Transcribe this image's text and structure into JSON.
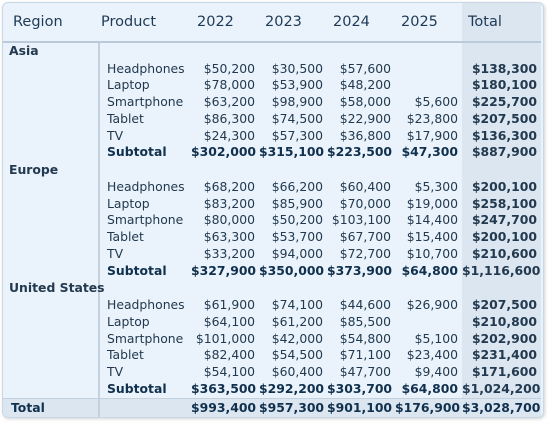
{
  "headers": {
    "region": "Region",
    "product": "Product",
    "years": [
      "2022",
      "2023",
      "2024",
      "2025"
    ],
    "total": "Total"
  },
  "regions": [
    {
      "name": "Asia",
      "rows": [
        {
          "product": "Headphones",
          "values": [
            "$50,200",
            "$30,500",
            "$57,600",
            ""
          ],
          "total": "$138,300"
        },
        {
          "product": "Laptop",
          "values": [
            "$78,000",
            "$53,900",
            "$48,200",
            ""
          ],
          "total": "$180,100"
        },
        {
          "product": "Smartphone",
          "values": [
            "$63,200",
            "$98,900",
            "$58,000",
            "$5,600"
          ],
          "total": "$225,700"
        },
        {
          "product": "Tablet",
          "values": [
            "$86,300",
            "$74,500",
            "$22,900",
            "$23,800"
          ],
          "total": "$207,500"
        },
        {
          "product": "TV",
          "values": [
            "$24,300",
            "$57,300",
            "$36,800",
            "$17,900"
          ],
          "total": "$136,300"
        }
      ],
      "subtotal": {
        "label": "Subtotal",
        "values": [
          "$302,000",
          "$315,100",
          "$223,500",
          "$47,300"
        ],
        "total": "$887,900"
      }
    },
    {
      "name": "Europe",
      "rows": [
        {
          "product": "Headphones",
          "values": [
            "$68,200",
            "$66,200",
            "$60,400",
            "$5,300"
          ],
          "total": "$200,100"
        },
        {
          "product": "Laptop",
          "values": [
            "$83,200",
            "$85,900",
            "$70,000",
            "$19,000"
          ],
          "total": "$258,100"
        },
        {
          "product": "Smartphone",
          "values": [
            "$80,000",
            "$50,200",
            "$103,100",
            "$14,400"
          ],
          "total": "$247,700"
        },
        {
          "product": "Tablet",
          "values": [
            "$63,300",
            "$53,700",
            "$67,700",
            "$15,400"
          ],
          "total": "$200,100"
        },
        {
          "product": "TV",
          "values": [
            "$33,200",
            "$94,000",
            "$72,700",
            "$10,700"
          ],
          "total": "$210,600"
        }
      ],
      "subtotal": {
        "label": "Subtotal",
        "values": [
          "$327,900",
          "$350,000",
          "$373,900",
          "$64,800"
        ],
        "total": "$1,116,600"
      }
    },
    {
      "name": "United States",
      "rows": [
        {
          "product": "Headphones",
          "values": [
            "$61,900",
            "$74,100",
            "$44,600",
            "$26,900"
          ],
          "total": "$207,500"
        },
        {
          "product": "Laptop",
          "values": [
            "$64,100",
            "$61,200",
            "$85,500",
            ""
          ],
          "total": "$210,800"
        },
        {
          "product": "Smartphone",
          "values": [
            "$101,000",
            "$42,000",
            "$54,800",
            "$5,100"
          ],
          "total": "$202,900"
        },
        {
          "product": "Tablet",
          "values": [
            "$82,400",
            "$54,500",
            "$71,100",
            "$23,400"
          ],
          "total": "$231,400"
        },
        {
          "product": "TV",
          "values": [
            "$54,100",
            "$60,400",
            "$47,700",
            "$9,400"
          ],
          "total": "$171,600"
        }
      ],
      "subtotal": {
        "label": "Subtotal",
        "values": [
          "$363,500",
          "$292,200",
          "$303,700",
          "$64,800"
        ],
        "total": "$1,024,200"
      }
    }
  ],
  "grand_total": {
    "label": "Total",
    "values": [
      "$993,400",
      "$957,300",
      "$901,100",
      "$176,900"
    ],
    "total": "$3,028,700"
  }
}
